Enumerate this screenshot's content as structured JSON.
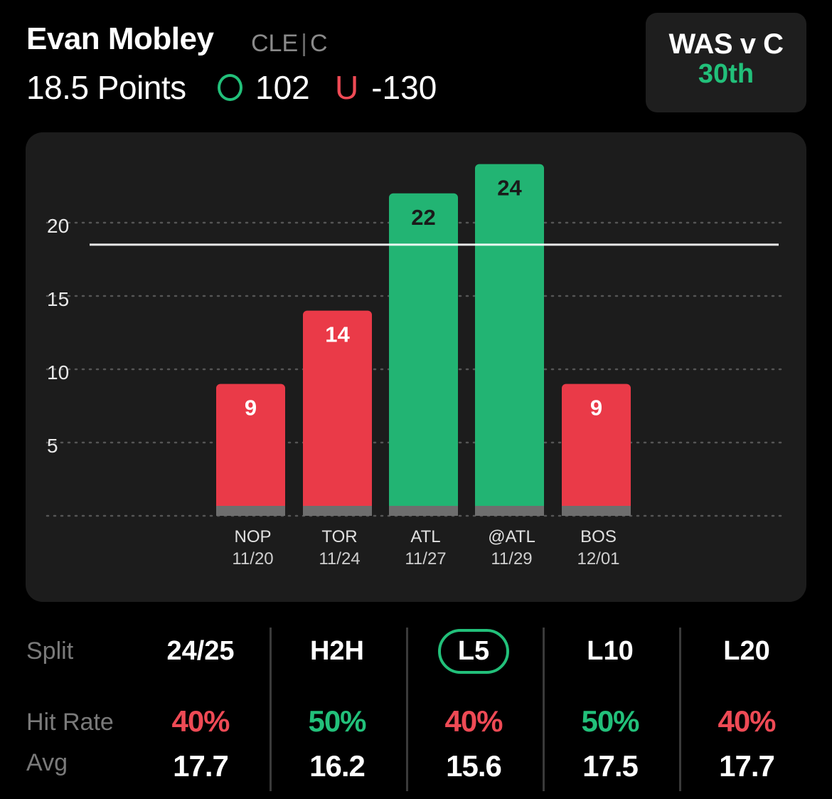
{
  "player": {
    "name": "Evan Mobley",
    "team": "CLE",
    "position": "C",
    "prop": "18.5 Points",
    "over_odds": "102",
    "under_label": "U",
    "under_odds": "-130"
  },
  "matchup": {
    "label": "WAS v C",
    "rank": "30th"
  },
  "colors": {
    "hit": "#22b473",
    "miss": "#ea3a48",
    "over_icon": "#22c07a",
    "under_icon": "#ee4a55",
    "active_split": "#22c07a"
  },
  "chart_data": {
    "type": "bar",
    "categories": [
      "NOP 11/20",
      "TOR 11/24",
      "ATL 11/27",
      "@ATL 11/29",
      "BOS 12/01"
    ],
    "opponents": [
      "NOP",
      "TOR",
      "ATL",
      "@ATL",
      "BOS"
    ],
    "dates": [
      "11/20",
      "11/24",
      "11/27",
      "11/29",
      "12/01"
    ],
    "values": [
      9,
      14,
      22,
      24,
      9
    ],
    "result": [
      "miss",
      "miss",
      "hit",
      "hit",
      "miss"
    ],
    "line": 18.5,
    "yticks": [
      5,
      10,
      15,
      20
    ],
    "ylim": [
      0,
      25
    ],
    "grid": true,
    "title": "",
    "xlabel": "",
    "ylabel": ""
  },
  "splits": {
    "row_labels": {
      "split": "Split",
      "hit_rate": "Hit Rate",
      "avg": "Avg"
    },
    "columns": [
      {
        "label": "24/25",
        "hit_rate": "40%",
        "hit_status": "miss",
        "avg": "17.7",
        "active": false
      },
      {
        "label": "H2H",
        "hit_rate": "50%",
        "hit_status": "hit",
        "avg": "16.2",
        "active": false
      },
      {
        "label": "L5",
        "hit_rate": "40%",
        "hit_status": "miss",
        "avg": "15.6",
        "active": true
      },
      {
        "label": "L10",
        "hit_rate": "50%",
        "hit_status": "hit",
        "avg": "17.5",
        "active": false
      },
      {
        "label": "L20",
        "hit_rate": "40%",
        "hit_status": "miss",
        "avg": "17.7",
        "active": false
      }
    ]
  }
}
